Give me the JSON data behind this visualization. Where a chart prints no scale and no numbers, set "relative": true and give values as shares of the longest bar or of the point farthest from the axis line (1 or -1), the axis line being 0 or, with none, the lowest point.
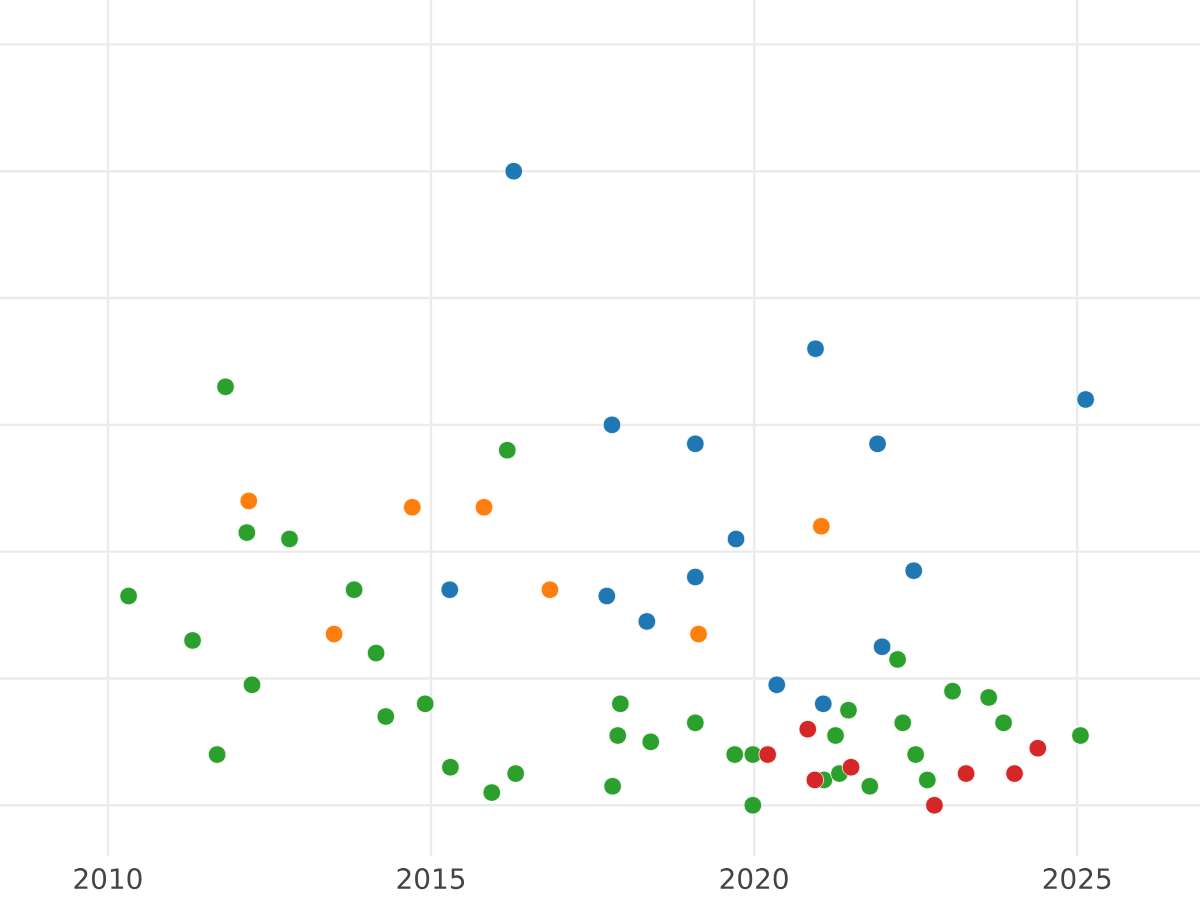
{
  "chart_data": {
    "type": "scatter",
    "relative": true,
    "xlim": [
      2008.33,
      2026.9
    ],
    "xticks": [
      2010,
      2015,
      2020,
      2025
    ],
    "grid": true,
    "tick_labels": "x",
    "marker": "circle",
    "series": [
      {
        "color": "#1f77b4",
        "x": [
          2016.28,
          2020.95,
          2017.8,
          2019.09,
          2021.91,
          2025.13,
          2019.72,
          2019.09,
          2022.47,
          2015.29,
          2017.72,
          2018.34,
          2021.98,
          2020.35,
          2021.07
        ],
        "values": [
          1.0,
          0.72,
          0.6,
          0.57,
          0.57,
          0.64,
          0.42,
          0.36,
          0.37,
          0.34,
          0.33,
          0.29,
          0.25,
          0.19,
          0.16
        ]
      },
      {
        "color": "#ff7f0e",
        "x": [
          2012.18,
          2014.71,
          2015.82,
          2016.84,
          2013.5,
          2021.04,
          2019.14
        ],
        "values": [
          0.48,
          0.47,
          0.47,
          0.34,
          0.27,
          0.44,
          0.27
        ]
      },
      {
        "color": "#2ca02c",
        "x": [
          2011.82,
          2016.18,
          2012.15,
          2012.81,
          2013.81,
          2010.32,
          2011.31,
          2014.15,
          2012.23,
          2014.91,
          2014.3,
          2011.69,
          2015.3,
          2016.31,
          2015.94,
          2022.22,
          2017.93,
          2023.07,
          2023.63,
          2021.46,
          2019.09,
          2022.3,
          2023.86,
          2017.89,
          2018.4,
          2021.26,
          2025.05,
          2019.7,
          2019.98,
          2022.5,
          2017.81,
          2021.08,
          2021.32,
          2021.79,
          2022.68,
          2019.98
        ],
        "values": [
          0.66,
          0.56,
          0.43,
          0.42,
          0.34,
          0.33,
          0.26,
          0.24,
          0.19,
          0.16,
          0.14,
          0.08,
          0.06,
          0.05,
          0.02,
          0.23,
          0.16,
          0.18,
          0.17,
          0.15,
          0.13,
          0.13,
          0.13,
          0.11,
          0.1,
          0.11,
          0.11,
          0.08,
          0.08,
          0.08,
          0.03,
          0.04,
          0.05,
          0.03,
          0.04,
          0.0
        ]
      },
      {
        "color": "#d62728",
        "x": [
          2020.83,
          2020.21,
          2021.5,
          2020.94,
          2024.39,
          2023.28,
          2024.03,
          2022.79
        ],
        "values": [
          0.12,
          0.08,
          0.06,
          0.04,
          0.09,
          0.05,
          0.05,
          0.0
        ]
      }
    ]
  }
}
